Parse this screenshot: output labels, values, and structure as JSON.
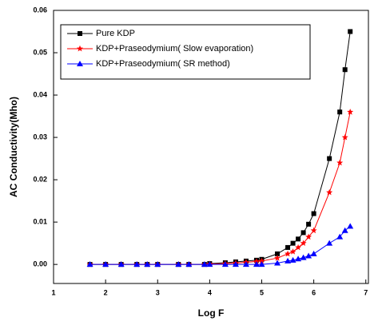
{
  "chart_data": {
    "type": "line",
    "xlabel": "Log F",
    "ylabel": "AC Conductivity(Mho)",
    "x": [
      1.7,
      2.0,
      2.3,
      2.6,
      2.8,
      3.0,
      3.4,
      3.6,
      3.9,
      4.0,
      4.3,
      4.5,
      4.7,
      4.9,
      5.0,
      5.3,
      5.5,
      5.6,
      5.7,
      5.8,
      5.9,
      6.0,
      6.3,
      6.5,
      6.6,
      6.7
    ],
    "series": [
      {
        "name": "Pure KDP",
        "color": "#000000",
        "marker": "square",
        "values": [
          0,
          0,
          0,
          0,
          0,
          0,
          0,
          0,
          0,
          0.0002,
          0.0004,
          0.0006,
          0.0008,
          0.001,
          0.0012,
          0.0025,
          0.004,
          0.005,
          0.006,
          0.0075,
          0.0095,
          0.012,
          0.025,
          0.036,
          0.046,
          0.055
        ]
      },
      {
        "name": "KDP+Praseodymium( Slow evaporation)",
        "color": "#ff0000",
        "marker": "star",
        "values": [
          0,
          0,
          0,
          0,
          0,
          0,
          0,
          0,
          0,
          0.0001,
          0.0002,
          0.0003,
          0.0005,
          0.0007,
          0.0008,
          0.0015,
          0.0025,
          0.003,
          0.004,
          0.005,
          0.0065,
          0.008,
          0.017,
          0.024,
          0.03,
          0.036
        ]
      },
      {
        "name": "KDP+Praseodymium( SR method)",
        "color": "#0000ff",
        "marker": "triangle",
        "values": [
          0,
          0,
          0,
          0,
          0,
          0,
          0,
          0,
          0,
          0,
          0,
          0,
          0,
          0,
          0,
          0.0003,
          0.0008,
          0.001,
          0.0013,
          0.0016,
          0.002,
          0.0025,
          0.005,
          0.0065,
          0.008,
          0.009
        ]
      }
    ],
    "xlim": [
      1,
      7.05
    ],
    "xticks": [
      1,
      2,
      3,
      4,
      5,
      6,
      7
    ],
    "ylim": [
      -0.0045,
      0.06
    ],
    "yticks": [
      {
        "value": 0,
        "label": "0.00"
      },
      0.01,
      0.02,
      0.03,
      0.04,
      0.05,
      0.06
    ],
    "legend": "upper left",
    "grid": false
  }
}
